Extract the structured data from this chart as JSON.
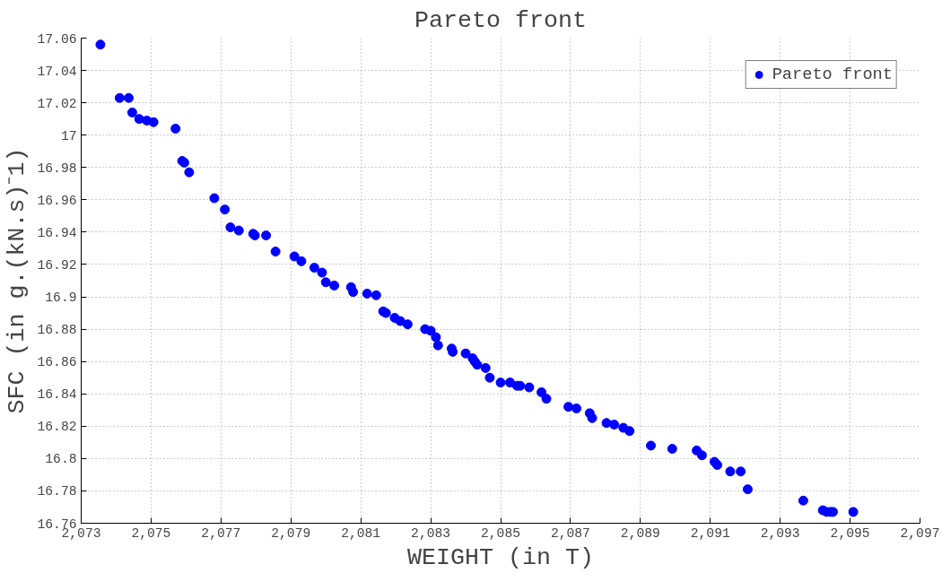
{
  "chart_data": {
    "type": "scatter",
    "title": "Pareto front",
    "xlabel": "WEIGHT (in T)",
    "ylabel": "SFC (in g.(kN.s)⁻1)",
    "xlim": [
      2073,
      2097
    ],
    "ylim": [
      16.76,
      17.06
    ],
    "xticks": [
      {
        "value": 2073,
        "label": "2,073"
      },
      {
        "value": 2075,
        "label": "2,075"
      },
      {
        "value": 2077,
        "label": "2,077"
      },
      {
        "value": 2079,
        "label": "2,079"
      },
      {
        "value": 2081,
        "label": "2,081"
      },
      {
        "value": 2083,
        "label": "2,083"
      },
      {
        "value": 2085,
        "label": "2,085"
      },
      {
        "value": 2087,
        "label": "2,087"
      },
      {
        "value": 2089,
        "label": "2,089"
      },
      {
        "value": 2091,
        "label": "2,091"
      },
      {
        "value": 2093,
        "label": "2,093"
      },
      {
        "value": 2095,
        "label": "2,095"
      },
      {
        "value": 2097,
        "label": "2,097"
      }
    ],
    "yticks": [
      16.76,
      16.78,
      16.8,
      16.82,
      16.84,
      16.86,
      16.88,
      16.9,
      16.92,
      16.94,
      16.96,
      16.98,
      17,
      17.02,
      17.04,
      17.06
    ],
    "grid": true,
    "legend": "top right",
    "marker": "circle",
    "series": [
      {
        "name": "Pareto front",
        "color": "#0000ff",
        "x": [
          2073.55,
          2074.1,
          2074.36,
          2074.46,
          2074.66,
          2074.88,
          2075.07,
          2075.7,
          2075.89,
          2075.95,
          2076.09,
          2076.81,
          2077.11,
          2077.27,
          2077.51,
          2077.92,
          2077.97,
          2078.29,
          2078.56,
          2079.1,
          2079.3,
          2079.67,
          2079.89,
          2080.0,
          2080.24,
          2080.72,
          2080.78,
          2081.18,
          2081.44,
          2081.64,
          2081.72,
          2081.97,
          2082.13,
          2082.34,
          2082.84,
          2083.0,
          2083.15,
          2083.21,
          2083.6,
          2083.63,
          2084.0,
          2084.2,
          2084.26,
          2084.33,
          2084.57,
          2084.69,
          2085.0,
          2085.27,
          2085.47,
          2085.56,
          2085.82,
          2086.17,
          2086.31,
          2086.94,
          2087.17,
          2087.55,
          2087.62,
          2088.03,
          2088.25,
          2088.51,
          2088.69,
          2089.3,
          2089.91,
          2090.61,
          2090.76,
          2091.12,
          2091.2,
          2091.57,
          2091.87,
          2092.07,
          2093.66,
          2094.22,
          2094.33,
          2094.44,
          2094.51,
          2095.09
        ],
        "values": [
          17.056,
          17.023,
          17.023,
          17.014,
          17.01,
          17.009,
          17.008,
          17.004,
          16.984,
          16.983,
          16.977,
          16.961,
          16.954,
          16.943,
          16.941,
          16.939,
          16.938,
          16.938,
          16.928,
          16.925,
          16.922,
          16.918,
          16.915,
          16.909,
          16.907,
          16.906,
          16.903,
          16.902,
          16.901,
          16.891,
          16.89,
          16.887,
          16.885,
          16.883,
          16.88,
          16.879,
          16.875,
          16.87,
          16.868,
          16.866,
          16.865,
          16.862,
          16.86,
          16.858,
          16.856,
          16.85,
          16.847,
          16.847,
          16.845,
          16.845,
          16.844,
          16.841,
          16.837,
          16.832,
          16.831,
          16.828,
          16.825,
          16.822,
          16.821,
          16.819,
          16.817,
          16.808,
          16.806,
          16.805,
          16.802,
          16.798,
          16.796,
          16.792,
          16.792,
          16.781,
          16.774,
          16.768,
          16.767,
          16.767,
          16.767,
          16.767
        ]
      }
    ]
  }
}
